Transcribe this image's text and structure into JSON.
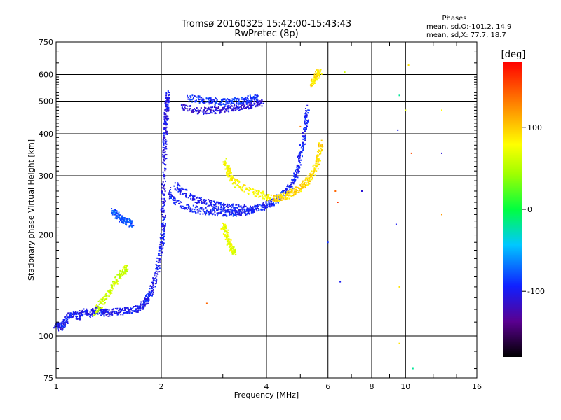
{
  "header": {
    "title": "Tromsø 20160325 15:42:00-15:43:43",
    "subtitle": "RwPretec (8p)",
    "phases_label": "Phases",
    "phases_line1": "mean, sd,O:-101.2, 14.9",
    "phases_line2": "mean, sd,X:  77.7, 18.7"
  },
  "colorbar": {
    "unit": "[deg]",
    "ticks": [
      {
        "value": 100,
        "label": "100"
      },
      {
        "value": 0,
        "label": "0"
      },
      {
        "value": -100,
        "label": "-100"
      }
    ],
    "min": -180,
    "max": 180
  },
  "chart_data": {
    "type": "scatter",
    "title": "Tromsø 20160325 15:42:00-15:43:43",
    "subtitle": "RwPretec (8p)",
    "xlabel": "Frequency [MHz]",
    "ylabel": "Stationary phase Virtual Height [km]",
    "xscale": "log",
    "yscale": "log",
    "xlim": [
      1,
      16
    ],
    "ylim": [
      75,
      750
    ],
    "grid": true,
    "x_ticks": [
      {
        "value": 1,
        "label": "1"
      },
      {
        "value": 2,
        "label": "2"
      },
      {
        "value": 4,
        "label": "4"
      },
      {
        "value": 6,
        "label": "6"
      },
      {
        "value": 8,
        "label": "8"
      },
      {
        "value": 10,
        "label": "10"
      },
      {
        "value": 16,
        "label": "16"
      }
    ],
    "x_minor_ticks": [
      3,
      5,
      7,
      9,
      12,
      14
    ],
    "y_ticks": [
      {
        "value": 75,
        "label": "75"
      },
      {
        "value": 100,
        "label": "100"
      },
      {
        "value": 200,
        "label": "200"
      },
      {
        "value": 300,
        "label": "300"
      },
      {
        "value": 400,
        "label": "400"
      },
      {
        "value": 500,
        "label": "500"
      },
      {
        "value": 600,
        "label": "600"
      },
      {
        "value": 750,
        "label": "750"
      }
    ],
    "traces": [
      {
        "phase": -100,
        "points": [
          [
            1.0,
            108
          ],
          [
            1.03,
            106
          ],
          [
            1.06,
            110
          ],
          [
            1.1,
            116
          ],
          [
            1.15,
            114
          ],
          [
            1.2,
            118
          ],
          [
            1.25,
            116
          ],
          [
            1.3,
            120
          ],
          [
            1.35,
            118
          ],
          [
            1.4,
            117
          ],
          [
            1.5,
            118
          ],
          [
            1.6,
            119
          ],
          [
            1.7,
            120
          ],
          [
            1.75,
            122
          ],
          [
            1.8,
            126
          ],
          [
            1.85,
            132
          ],
          [
            1.9,
            142
          ],
          [
            1.95,
            158
          ],
          [
            2.0,
            185
          ],
          [
            2.02,
            200
          ],
          [
            2.04,
            230
          ]
        ]
      },
      {
        "phase": -105,
        "points": [
          [
            2.02,
            230
          ],
          [
            2.03,
            270
          ],
          [
            2.04,
            330
          ],
          [
            2.05,
            380
          ],
          [
            2.06,
            420
          ],
          [
            2.07,
            460
          ],
          [
            2.08,
            500
          ],
          [
            2.09,
            530
          ]
        ]
      },
      {
        "phase": -95,
        "points": [
          [
            2.1,
            270
          ],
          [
            2.2,
            250
          ],
          [
            2.4,
            240
          ],
          [
            2.6,
            236
          ],
          [
            2.8,
            234
          ],
          [
            3.0,
            233
          ],
          [
            3.2,
            232
          ],
          [
            3.4,
            233
          ],
          [
            3.6,
            236
          ],
          [
            3.8,
            240
          ],
          [
            4.0,
            245
          ],
          [
            4.2,
            252
          ],
          [
            4.4,
            260
          ],
          [
            4.6,
            272
          ],
          [
            4.8,
            290
          ],
          [
            4.9,
            310
          ],
          [
            5.0,
            340
          ],
          [
            5.1,
            380
          ],
          [
            5.2,
            430
          ],
          [
            5.25,
            480
          ]
        ]
      },
      {
        "phase": -100,
        "points": [
          [
            2.2,
            280
          ],
          [
            2.3,
            270
          ],
          [
            2.5,
            255
          ],
          [
            2.7,
            250
          ],
          [
            2.9,
            245
          ],
          [
            3.1,
            242
          ],
          [
            3.4,
            240
          ],
          [
            3.7,
            238
          ]
        ]
      },
      {
        "phase": -110,
        "points": [
          [
            2.3,
            480
          ],
          [
            2.5,
            470
          ],
          [
            2.7,
            468
          ],
          [
            2.9,
            470
          ],
          [
            3.1,
            475
          ],
          [
            3.3,
            480
          ],
          [
            3.5,
            485
          ],
          [
            3.7,
            490
          ],
          [
            3.9,
            495
          ]
        ]
      },
      {
        "phase": -90,
        "points": [
          [
            2.4,
            510
          ],
          [
            2.6,
            505
          ],
          [
            2.8,
            500
          ],
          [
            3.0,
            498
          ],
          [
            3.2,
            500
          ],
          [
            3.4,
            503
          ],
          [
            3.6,
            508
          ],
          [
            3.8,
            512
          ]
        ]
      },
      {
        "phase": 95,
        "points": [
          [
            4.2,
            255
          ],
          [
            4.4,
            258
          ],
          [
            4.6,
            262
          ],
          [
            4.8,
            268
          ],
          [
            5.0,
            276
          ],
          [
            5.2,
            286
          ],
          [
            5.4,
            300
          ],
          [
            5.55,
            320
          ],
          [
            5.65,
            345
          ],
          [
            5.75,
            380
          ]
        ]
      },
      {
        "phase": 80,
        "points": [
          [
            3.05,
            330
          ],
          [
            3.1,
            310
          ],
          [
            3.15,
            300
          ],
          [
            3.3,
            282
          ],
          [
            3.6,
            270
          ],
          [
            3.9,
            262
          ],
          [
            4.1,
            258
          ]
        ]
      },
      {
        "phase": 70,
        "points": [
          [
            3.0,
            215
          ],
          [
            3.05,
            205
          ],
          [
            3.1,
            195
          ],
          [
            3.15,
            185
          ],
          [
            3.2,
            180
          ],
          [
            3.25,
            178
          ]
        ]
      },
      {
        "phase": 90,
        "points": [
          [
            5.4,
            560
          ],
          [
            5.5,
            580
          ],
          [
            5.6,
            600
          ],
          [
            5.7,
            620
          ]
        ]
      },
      {
        "phase": 60,
        "points": [
          [
            1.3,
            118
          ],
          [
            1.35,
            125
          ],
          [
            1.4,
            132
          ],
          [
            1.45,
            140
          ],
          [
            1.5,
            148
          ],
          [
            1.55,
            155
          ],
          [
            1.6,
            160
          ]
        ]
      },
      {
        "phase": -80,
        "points": [
          [
            1.45,
            235
          ],
          [
            1.5,
            228
          ],
          [
            1.55,
            222
          ],
          [
            1.6,
            218
          ],
          [
            1.65,
            216
          ]
        ]
      }
    ],
    "isolated_points": [
      {
        "x": 6.3,
        "y": 270,
        "phase": 140
      },
      {
        "x": 6.4,
        "y": 250,
        "phase": 160
      },
      {
        "x": 7.5,
        "y": 270,
        "phase": -110
      },
      {
        "x": 9.6,
        "y": 520,
        "phase": -20
      },
      {
        "x": 10.0,
        "y": 470,
        "phase": 70
      },
      {
        "x": 10.2,
        "y": 640,
        "phase": 90
      },
      {
        "x": 10.4,
        "y": 350,
        "phase": 150
      },
      {
        "x": 12.7,
        "y": 350,
        "phase": -110
      },
      {
        "x": 12.7,
        "y": 470,
        "phase": 80
      },
      {
        "x": 12.7,
        "y": 230,
        "phase": 120
      },
      {
        "x": 9.5,
        "y": 410,
        "phase": -100
      },
      {
        "x": 9.4,
        "y": 215,
        "phase": -100
      },
      {
        "x": 9.6,
        "y": 140,
        "phase": 90
      },
      {
        "x": 9.6,
        "y": 95,
        "phase": 90
      },
      {
        "x": 10.5,
        "y": 80,
        "phase": -20
      },
      {
        "x": 6.0,
        "y": 190,
        "phase": -90
      },
      {
        "x": 6.5,
        "y": 145,
        "phase": -100
      },
      {
        "x": 2.7,
        "y": 125,
        "phase": 140
      },
      {
        "x": 5.0,
        "y": 420,
        "phase": 130
      },
      {
        "x": 6.7,
        "y": 610,
        "phase": 60
      }
    ]
  }
}
